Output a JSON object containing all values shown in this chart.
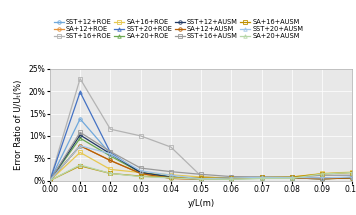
{
  "title": "",
  "xlabel": "y/L(m)",
  "ylabel": "Error Ratio of U/Uₜ(%)",
  "xlim": [
    0.0,
    0.1
  ],
  "ylim": [
    0.0,
    0.25
  ],
  "yticks": [
    0.0,
    0.05,
    0.1,
    0.15,
    0.2,
    0.25
  ],
  "xticks": [
    0.0,
    0.01,
    0.02,
    0.03,
    0.04,
    0.05,
    0.06,
    0.07,
    0.08,
    0.09,
    0.1
  ],
  "series": [
    {
      "label": "SST+12+ROE",
      "color": "#6fa8dc",
      "marker": "o",
      "markersize": 2.5,
      "linewidth": 0.9,
      "x": [
        0.0,
        0.01,
        0.02,
        0.03,
        0.04,
        0.05,
        0.06,
        0.07,
        0.08,
        0.09,
        0.1
      ],
      "y": [
        0.0,
        0.138,
        0.06,
        0.018,
        0.007,
        0.003,
        0.006,
        0.007,
        0.007,
        0.005,
        0.007
      ]
    },
    {
      "label": "SA+12+ROE",
      "color": "#e69138",
      "marker": "o",
      "markersize": 2.5,
      "linewidth": 0.9,
      "x": [
        0.0,
        0.01,
        0.02,
        0.03,
        0.04,
        0.05,
        0.06,
        0.07,
        0.08,
        0.09,
        0.1
      ],
      "y": [
        0.0,
        0.078,
        0.045,
        0.016,
        0.005,
        0.003,
        0.005,
        0.005,
        0.006,
        0.004,
        0.006
      ]
    },
    {
      "label": "SST+16+ROE",
      "color": "#b3b3b3",
      "marker": "s",
      "markersize": 2.5,
      "linewidth": 0.9,
      "x": [
        0.0,
        0.01,
        0.02,
        0.03,
        0.04,
        0.05,
        0.06,
        0.07,
        0.08,
        0.09,
        0.1
      ],
      "y": [
        0.0,
        0.228,
        0.115,
        0.1,
        0.075,
        0.01,
        0.003,
        0.007,
        0.006,
        0.006,
        0.007
      ]
    },
    {
      "label": "SA+16+ROE",
      "color": "#e6c850",
      "marker": "s",
      "markersize": 2.5,
      "linewidth": 0.9,
      "x": [
        0.0,
        0.01,
        0.02,
        0.03,
        0.04,
        0.05,
        0.06,
        0.07,
        0.08,
        0.09,
        0.1
      ],
      "y": [
        0.0,
        0.063,
        0.025,
        0.018,
        0.013,
        0.008,
        0.006,
        0.007,
        0.008,
        0.016,
        0.019
      ]
    },
    {
      "label": "SST+20+ROE",
      "color": "#4472c4",
      "marker": "^",
      "markersize": 2.5,
      "linewidth": 0.9,
      "x": [
        0.0,
        0.01,
        0.02,
        0.03,
        0.04,
        0.05,
        0.06,
        0.07,
        0.08,
        0.09,
        0.1
      ],
      "y": [
        0.0,
        0.198,
        0.063,
        0.018,
        0.008,
        0.003,
        0.005,
        0.006,
        0.006,
        0.004,
        0.007
      ]
    },
    {
      "label": "SA+20+ROE",
      "color": "#6aa84f",
      "marker": "^",
      "markersize": 2.5,
      "linewidth": 0.9,
      "x": [
        0.0,
        0.01,
        0.02,
        0.03,
        0.04,
        0.05,
        0.06,
        0.07,
        0.08,
        0.09,
        0.1
      ],
      "y": [
        0.0,
        0.095,
        0.055,
        0.018,
        0.008,
        0.003,
        0.004,
        0.005,
        0.006,
        0.004,
        0.006
      ]
    },
    {
      "label": "SST+12+AUSM",
      "color": "#1f3864",
      "marker": "o",
      "markersize": 2.5,
      "linewidth": 0.9,
      "x": [
        0.0,
        0.01,
        0.02,
        0.03,
        0.04,
        0.05,
        0.06,
        0.07,
        0.08,
        0.09,
        0.1
      ],
      "y": [
        0.0,
        0.102,
        0.06,
        0.018,
        0.008,
        0.003,
        0.007,
        0.007,
        0.007,
        0.005,
        0.007
      ]
    },
    {
      "label": "SA+12+AUSM",
      "color": "#b45f06",
      "marker": "o",
      "markersize": 2.5,
      "linewidth": 0.9,
      "x": [
        0.0,
        0.01,
        0.02,
        0.03,
        0.04,
        0.05,
        0.06,
        0.07,
        0.08,
        0.09,
        0.1
      ],
      "y": [
        0.0,
        0.078,
        0.045,
        0.016,
        0.005,
        0.003,
        0.005,
        0.005,
        0.006,
        0.004,
        0.006
      ]
    },
    {
      "label": "SST+16+AUSM",
      "color": "#999999",
      "marker": "s",
      "markersize": 2.5,
      "linewidth": 0.9,
      "x": [
        0.0,
        0.01,
        0.02,
        0.03,
        0.04,
        0.05,
        0.06,
        0.07,
        0.08,
        0.09,
        0.1
      ],
      "y": [
        0.0,
        0.108,
        0.065,
        0.028,
        0.02,
        0.014,
        0.009,
        0.008,
        0.007,
        0.012,
        0.012
      ]
    },
    {
      "label": "SA+16+AUSM",
      "color": "#bf9000",
      "marker": "s",
      "markersize": 2.5,
      "linewidth": 0.9,
      "x": [
        0.0,
        0.01,
        0.02,
        0.03,
        0.04,
        0.05,
        0.06,
        0.07,
        0.08,
        0.09,
        0.1
      ],
      "y": [
        0.0,
        0.033,
        0.016,
        0.01,
        0.007,
        0.006,
        0.006,
        0.007,
        0.008,
        0.015,
        0.018
      ]
    },
    {
      "label": "SST+20+AUSM",
      "color": "#9fc5e8",
      "marker": "^",
      "markersize": 2.5,
      "linewidth": 0.9,
      "x": [
        0.0,
        0.01,
        0.02,
        0.03,
        0.04,
        0.05,
        0.06,
        0.07,
        0.08,
        0.09,
        0.1
      ],
      "y": [
        0.0,
        0.078,
        0.06,
        0.022,
        0.012,
        0.004,
        0.006,
        0.007,
        0.007,
        0.006,
        0.008
      ]
    },
    {
      "label": "SA+20+AUSM",
      "color": "#b6d7a8",
      "marker": "^",
      "markersize": 2.5,
      "linewidth": 0.9,
      "x": [
        0.0,
        0.01,
        0.02,
        0.03,
        0.04,
        0.05,
        0.06,
        0.07,
        0.08,
        0.09,
        0.1
      ],
      "y": [
        0.0,
        0.035,
        0.016,
        0.009,
        0.006,
        0.003,
        0.003,
        0.005,
        0.005,
        0.015,
        0.018
      ]
    }
  ],
  "legend_ncol": 4,
  "legend_fontsize": 4.8,
  "axis_fontsize": 6.0,
  "tick_fontsize": 5.5,
  "bg_color": "#e8e8e8"
}
